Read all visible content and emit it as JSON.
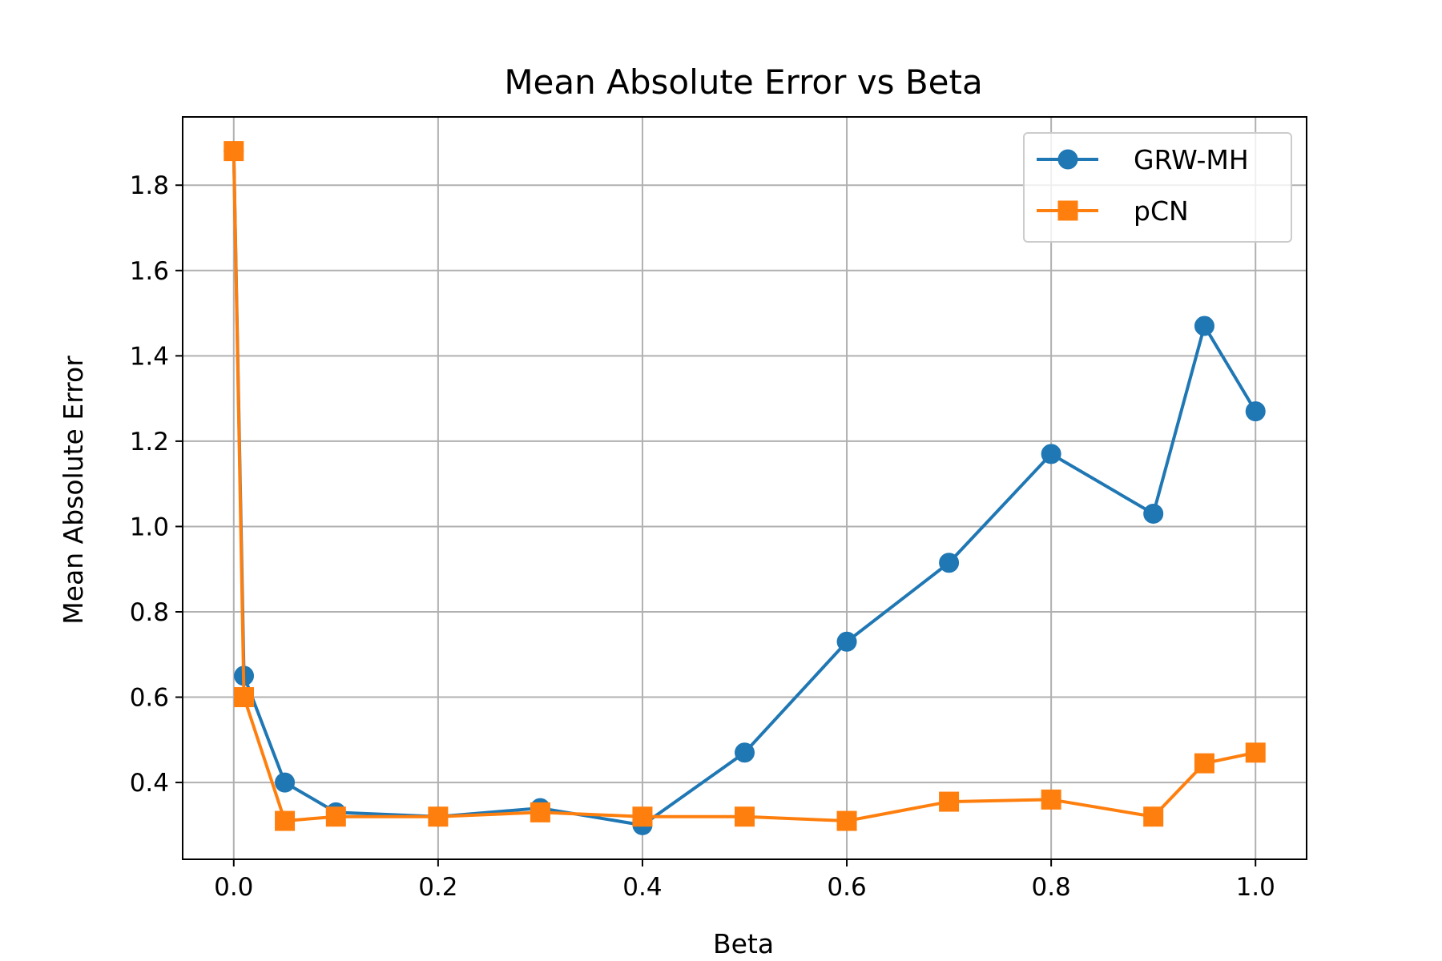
{
  "chart_data": {
    "type": "line",
    "title": "Mean Absolute Error vs Beta",
    "xlabel": "Beta",
    "ylabel": "Mean Absolute Error",
    "xlim": [
      -0.05,
      1.05
    ],
    "ylim": [
      0.22,
      1.96
    ],
    "xticks": [
      "0.0",
      "0.2",
      "0.4",
      "0.6",
      "0.8",
      "1.0"
    ],
    "yticks": [
      "0.4",
      "0.6",
      "0.8",
      "1.0",
      "1.2",
      "1.4",
      "1.6",
      "1.8"
    ],
    "grid": true,
    "legend_position": "top-right",
    "x": [
      0.0,
      0.01,
      0.05,
      0.1,
      0.2,
      0.3,
      0.4,
      0.5,
      0.6,
      0.7,
      0.8,
      0.9,
      0.95,
      1.0
    ],
    "series": [
      {
        "name": "GRW-MH",
        "marker": "circle",
        "color": "#1f77b4",
        "values": [
          1.88,
          0.65,
          0.4,
          0.33,
          0.32,
          0.34,
          0.3,
          0.47,
          0.73,
          0.915,
          1.17,
          1.03,
          1.47,
          1.27
        ]
      },
      {
        "name": "pCN",
        "marker": "square",
        "color": "#ff7f0e",
        "values": [
          1.88,
          0.6,
          0.31,
          0.32,
          0.32,
          0.33,
          0.32,
          0.32,
          0.31,
          0.355,
          0.36,
          0.32,
          0.445,
          0.47
        ]
      }
    ]
  }
}
